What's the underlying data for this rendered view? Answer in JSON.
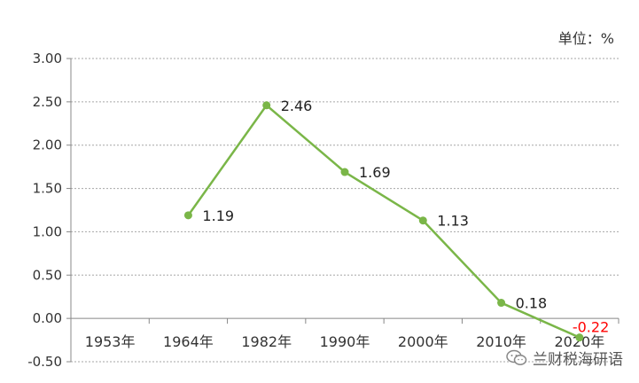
{
  "unit_label": "单位：%",
  "watermark": {
    "text": "兰财税海研语",
    "icon": "wechat-icon"
  },
  "chart_data": {
    "type": "line",
    "title": "",
    "xlabel": "",
    "ylabel": "",
    "categories": [
      "1953年",
      "1964年",
      "1982年",
      "1990年",
      "2000年",
      "2010年",
      "2020年"
    ],
    "series": [
      {
        "values": [
          null,
          1.19,
          2.46,
          1.69,
          1.13,
          0.18,
          -0.22
        ],
        "color": "#7ab648"
      }
    ],
    "data_labels": [
      "",
      "1.19",
      "2.46",
      "1.69",
      "1.13",
      "0.18",
      "-0.22"
    ],
    "negative_label_color": "#ff0000",
    "y_ticks": [
      "3.00",
      "2.50",
      "2.00",
      "1.50",
      "1.00",
      "0.50",
      "0.00",
      "-0.50"
    ],
    "ylim": [
      -0.5,
      3.0
    ],
    "grid": true,
    "legend": "none"
  }
}
